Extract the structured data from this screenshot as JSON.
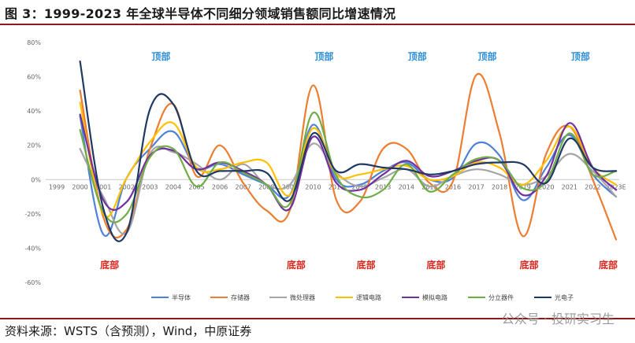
{
  "header": {
    "title": "图 3：1999-2023 年全球半导体不同细分领域销售额同比增速情况"
  },
  "footer": {
    "source": "资料来源：WSTS（含预测），Wind，中原证券",
    "watermark": "公众号 · 投研实习生"
  },
  "chart_data": {
    "type": "line",
    "title": "",
    "xlabel": "",
    "ylabel": "",
    "ylim": [
      -60,
      80
    ],
    "y_ticks": [
      "80%",
      "60%",
      "40%",
      "20%",
      "0%",
      "-20%",
      "-40%",
      "-60%"
    ],
    "y_tick_values": [
      80,
      60,
      40,
      20,
      0,
      -20,
      -40,
      -60
    ],
    "categories": [
      "1999",
      "2000",
      "2001",
      "2002",
      "2003",
      "2004",
      "2005",
      "2006",
      "2007",
      "2008",
      "2009",
      "2010",
      "2011",
      "2012",
      "2013",
      "2014",
      "2015",
      "2016",
      "2017",
      "2018",
      "2019",
      "2020",
      "2021",
      "2022",
      "2023E"
    ],
    "grid": false,
    "legend_position": "bottom",
    "series": [
      {
        "name": "半导体",
        "color": "#4f81d8",
        "values": [
          null,
          37,
          -32,
          1,
          18,
          28,
          7,
          9,
          3,
          -3,
          -9,
          32,
          0,
          -3,
          5,
          10,
          0,
          1,
          21,
          14,
          -12,
          7,
          26,
          3,
          -10
        ]
      },
      {
        "name": "存储器",
        "color": "#ed7d31",
        "values": [
          null,
          52,
          -22,
          -29,
          18,
          44,
          2,
          20,
          -2,
          -18,
          -18,
          55,
          -12,
          -13,
          18,
          18,
          -2,
          -1,
          61,
          27,
          -33,
          15,
          31,
          0,
          -35
        ]
      },
      {
        "name": "微处理器",
        "color": "#a5a5a5",
        "values": [
          null,
          18,
          -10,
          -31,
          15,
          16,
          9,
          0,
          9,
          -3,
          -3,
          21,
          4,
          -4,
          1,
          6,
          -4,
          2,
          6,
          3,
          -3,
          2,
          15,
          5,
          -10
        ]
      },
      {
        "name": "逻辑电路",
        "color": "#ffc000",
        "values": [
          null,
          45,
          -20,
          1,
          22,
          33,
          7,
          6,
          10,
          10,
          -9,
          30,
          3,
          3,
          6,
          8,
          0,
          2,
          10,
          7,
          -3,
          11,
          31,
          7,
          -3
        ]
      },
      {
        "name": "模拟电路",
        "color": "#7030a0",
        "values": [
          null,
          38,
          -12,
          -13,
          14,
          17,
          6,
          10,
          5,
          -3,
          -17,
          25,
          -2,
          -6,
          3,
          11,
          2,
          5,
          11,
          11,
          -9,
          2,
          33,
          7,
          -6
        ]
      },
      {
        "name": "分立器件",
        "color": "#70ad47",
        "values": [
          null,
          29,
          -19,
          -20,
          13,
          18,
          -4,
          10,
          4,
          -3,
          -14,
          39,
          2,
          -10,
          -6,
          9,
          -7,
          3,
          12,
          11,
          -5,
          -1,
          27,
          3,
          5
        ]
      },
      {
        "name": "光电子",
        "color": "#1f3864",
        "values": [
          null,
          69,
          -17,
          -31,
          41,
          44,
          5,
          5,
          5,
          4,
          -12,
          27,
          5,
          9,
          7,
          6,
          3,
          5,
          9,
          10,
          9,
          -2,
          24,
          7,
          5
        ]
      }
    ],
    "annotations": {
      "peaks": [
        {
          "label": "顶部",
          "year": "2003"
        },
        {
          "label": "顶部",
          "year": "2010"
        },
        {
          "label": "顶部",
          "year": "2014"
        },
        {
          "label": "顶部",
          "year": "2017"
        },
        {
          "label": "顶部",
          "year": "2021"
        }
      ],
      "troughs": [
        {
          "label": "底部",
          "year": "2001"
        },
        {
          "label": "底部",
          "year": "2009"
        },
        {
          "label": "底部",
          "year": "2012"
        },
        {
          "label": "底部",
          "year": "2015"
        },
        {
          "label": "底部",
          "year": "2019"
        },
        {
          "label": "底部",
          "year": "2023E"
        }
      ]
    }
  }
}
